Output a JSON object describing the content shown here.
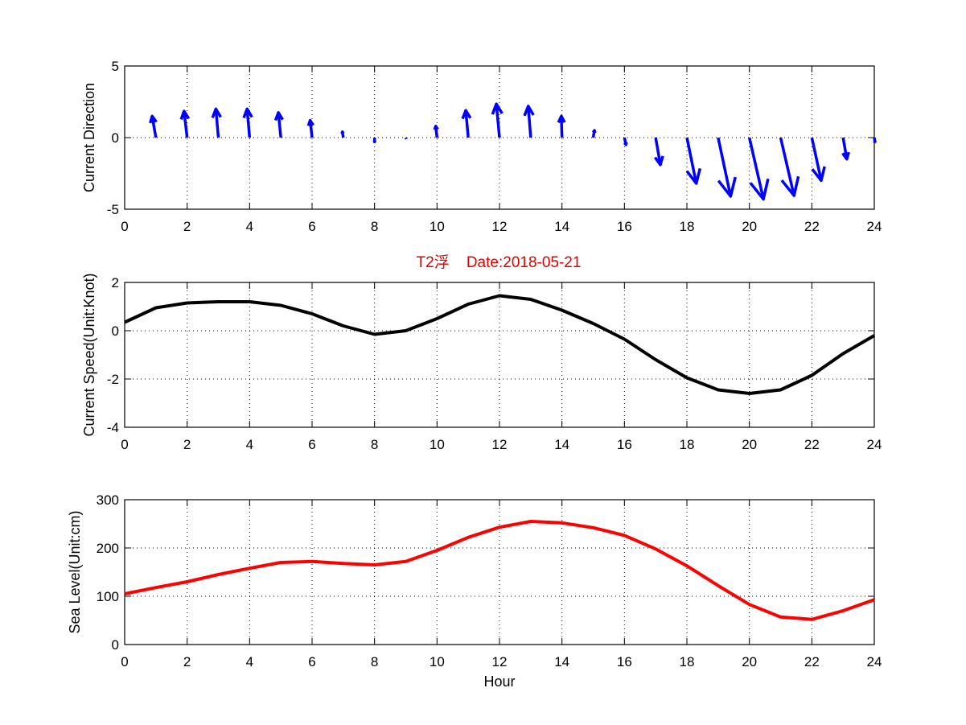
{
  "title": "T2浮    Date:2018-05-21",
  "colors": {
    "quiver": "#0000ff",
    "speed": "#000000",
    "sea_level": "#ff0000",
    "title": "#e00000"
  },
  "chart_data": [
    {
      "type": "quiver",
      "ylabel": "Current Direction",
      "xlabel": "",
      "xlim": [
        0,
        24
      ],
      "ylim": [
        -5,
        5
      ],
      "xticks": [
        0,
        2,
        4,
        6,
        8,
        10,
        12,
        14,
        16,
        18,
        20,
        22,
        24
      ],
      "yticks": [
        -5,
        0,
        5
      ],
      "grid": true,
      "x": [
        1,
        2,
        3,
        4,
        5,
        6,
        7,
        8,
        9,
        10,
        11,
        12,
        13,
        14,
        15,
        16,
        17,
        18,
        19,
        20,
        21,
        22,
        23,
        24
      ],
      "u": [
        -0.12,
        -0.1,
        -0.08,
        -0.08,
        -0.08,
        -0.06,
        -0.03,
        0.0,
        0.02,
        -0.04,
        -0.08,
        -0.1,
        -0.08,
        -0.02,
        0.04,
        0.05,
        0.15,
        0.3,
        0.4,
        0.45,
        0.43,
        0.3,
        0.12,
        0.02
      ],
      "v": [
        1.5,
        1.85,
        2.0,
        2.0,
        1.75,
        1.2,
        0.4,
        -0.3,
        -0.1,
        0.8,
        1.9,
        2.35,
        2.2,
        1.5,
        0.5,
        -0.5,
        -1.9,
        -3.2,
        -4.1,
        -4.3,
        -4.05,
        -3.0,
        -1.5,
        -0.3
      ]
    },
    {
      "type": "line",
      "ylabel": "Current Speed(Unit:Knot)",
      "xlabel": "",
      "xlim": [
        0,
        24
      ],
      "ylim": [
        -4,
        2
      ],
      "xticks": [
        0,
        2,
        4,
        6,
        8,
        10,
        12,
        14,
        16,
        18,
        20,
        22,
        24
      ],
      "yticks": [
        -4,
        -2,
        0,
        2
      ],
      "grid": true,
      "x": [
        0,
        1,
        2,
        3,
        4,
        5,
        6,
        7,
        8,
        9,
        10,
        11,
        12,
        13,
        14,
        15,
        16,
        17,
        18,
        19,
        20,
        21,
        22,
        23,
        24
      ],
      "y": [
        0.35,
        0.95,
        1.15,
        1.2,
        1.2,
        1.05,
        0.7,
        0.2,
        -0.15,
        -0.0,
        0.5,
        1.1,
        1.45,
        1.3,
        0.85,
        0.3,
        -0.35,
        -1.2,
        -1.95,
        -2.45,
        -2.6,
        -2.45,
        -1.85,
        -0.95,
        -0.2
      ]
    },
    {
      "type": "line",
      "ylabel": "Sea Level(Unit:cm)",
      "xlabel": "Hour",
      "xlim": [
        0,
        24
      ],
      "ylim": [
        0,
        300
      ],
      "xticks": [
        0,
        2,
        4,
        6,
        8,
        10,
        12,
        14,
        16,
        18,
        20,
        22,
        24
      ],
      "yticks": [
        0,
        100,
        200,
        300
      ],
      "grid": true,
      "x": [
        0,
        1,
        2,
        3,
        4,
        5,
        6,
        7,
        8,
        9,
        10,
        11,
        12,
        13,
        14,
        15,
        16,
        17,
        18,
        19,
        20,
        21,
        22,
        23,
        24
      ],
      "y": [
        105,
        118,
        130,
        145,
        158,
        170,
        172,
        168,
        165,
        172,
        195,
        222,
        243,
        255,
        252,
        242,
        226,
        198,
        163,
        122,
        83,
        57,
        52,
        70,
        93
      ]
    }
  ]
}
